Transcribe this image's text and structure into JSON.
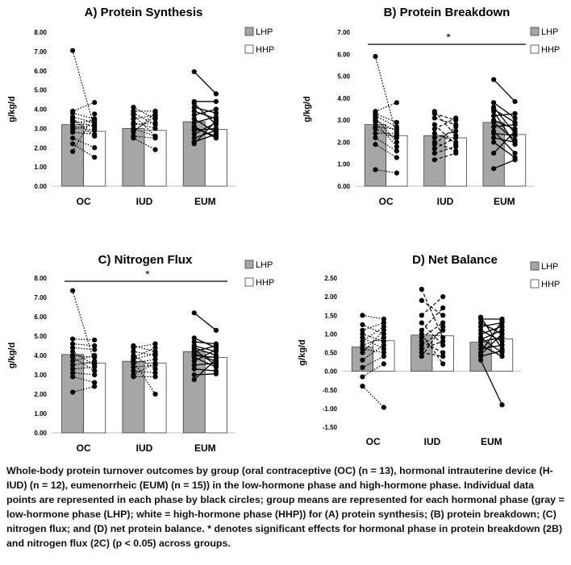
{
  "colors": {
    "lhp": "#a6a6a6",
    "hhp": "#ffffff",
    "dot": "#000000",
    "axis": "#bfbfbf",
    "bar_edge": "#404040"
  },
  "chart_data": [
    {
      "id": "A",
      "type": "bar",
      "title": "A) Protein Synthesis",
      "ylabel": "g/kg/d",
      "ylim": [
        0,
        8
      ],
      "yticks": [
        "0.00",
        "1.00",
        "2.00",
        "3.00",
        "4.00",
        "5.00",
        "6.00",
        "7.00",
        "8.00"
      ],
      "tick_values": [
        0,
        1,
        2,
        3,
        4,
        5,
        6,
        7,
        8
      ],
      "categories": [
        "OC",
        "IUD",
        "EUM"
      ],
      "legend": [
        "LHP",
        "HHP"
      ],
      "significance": null,
      "series": [
        {
          "name": "LHP",
          "values": [
            3.2,
            3.0,
            3.35
          ]
        },
        {
          "name": "HHP",
          "values": [
            2.85,
            2.9,
            2.95
          ]
        }
      ],
      "individual": [
        {
          "lhp": [
            7.05,
            3.9,
            3.8,
            3.6,
            3.5,
            3.4,
            3.3,
            3.1,
            2.95,
            2.8,
            2.5,
            2.2,
            1.8
          ],
          "hhp": [
            3.0,
            4.35,
            3.5,
            3.3,
            2.6,
            3.1,
            3.4,
            2.9,
            3.2,
            2.7,
            2.0,
            1.5,
            3.75
          ],
          "style": [
            1,
            1,
            1,
            1,
            1,
            1,
            1,
            1,
            1,
            1,
            1,
            1,
            1
          ]
        },
        {
          "lhp": [
            4.1,
            3.9,
            3.7,
            3.5,
            3.3,
            3.2,
            3.0,
            2.9,
            2.8,
            2.6,
            2.5,
            3.8
          ],
          "hhp": [
            3.5,
            3.9,
            2.6,
            3.7,
            3.0,
            3.3,
            2.6,
            3.6,
            3.8,
            2.5,
            1.9,
            3.2
          ],
          "style": [
            1,
            1,
            1,
            1,
            1,
            1,
            1,
            1,
            1,
            1,
            1,
            1
          ]
        },
        {
          "lhp": [
            5.95,
            4.4,
            4.3,
            4.1,
            3.9,
            3.7,
            3.5,
            3.3,
            3.1,
            2.9,
            2.7,
            2.5,
            2.3,
            2.2,
            3.0
          ],
          "hhp": [
            4.8,
            4.4,
            3.2,
            3.8,
            3.5,
            4.0,
            2.8,
            3.6,
            2.5,
            3.0,
            3.3,
            2.9,
            2.7,
            3.4,
            2.6
          ],
          "style": [
            0,
            0,
            0,
            0,
            0,
            0,
            0,
            0,
            0,
            0,
            0,
            0,
            0,
            0,
            0
          ]
        }
      ]
    },
    {
      "id": "B",
      "type": "bar",
      "title": "B) Protein Breakdown",
      "ylabel": "g/kg/d",
      "ylim": [
        0,
        7
      ],
      "yticks": [
        "0.00",
        "1.00",
        "2.00",
        "3.00",
        "4.00",
        "5.00",
        "6.00",
        "7.00"
      ],
      "tick_values": [
        0,
        1,
        2,
        3,
        4,
        5,
        6,
        7
      ],
      "categories": [
        "OC",
        "IUD",
        "EUM"
      ],
      "legend": [
        "LHP",
        "HHP"
      ],
      "significance": "*",
      "series": [
        {
          "name": "LHP",
          "values": [
            2.8,
            2.3,
            2.9
          ]
        },
        {
          "name": "HHP",
          "values": [
            2.3,
            2.2,
            2.35
          ]
        }
      ],
      "individual": [
        {
          "lhp": [
            5.9,
            3.4,
            3.3,
            3.2,
            3.1,
            3.0,
            2.9,
            2.7,
            2.6,
            2.4,
            2.2,
            1.9,
            0.75
          ],
          "hhp": [
            2.3,
            3.8,
            2.9,
            2.7,
            2.0,
            2.5,
            1.8,
            2.6,
            2.2,
            2.4,
            1.6,
            1.3,
            0.6
          ],
          "style": [
            1,
            1,
            1,
            1,
            1,
            1,
            1,
            1,
            1,
            1,
            1,
            1,
            1
          ]
        },
        {
          "lhp": [
            3.4,
            3.3,
            3.1,
            2.8,
            2.6,
            2.4,
            2.2,
            2.0,
            1.9,
            1.7,
            1.5,
            1.2
          ],
          "hhp": [
            2.3,
            3.0,
            2.8,
            1.9,
            3.1,
            2.0,
            2.5,
            1.6,
            2.7,
            2.2,
            1.8,
            1.5
          ],
          "style": [
            2,
            2,
            2,
            2,
            2,
            2,
            2,
            2,
            2,
            2,
            2,
            2
          ]
        },
        {
          "lhp": [
            4.85,
            3.8,
            3.6,
            3.5,
            3.4,
            3.2,
            3.0,
            2.9,
            2.7,
            2.5,
            2.4,
            2.2,
            2.0,
            1.5,
            0.8
          ],
          "hhp": [
            3.85,
            3.1,
            2.4,
            2.9,
            1.9,
            3.3,
            2.6,
            2.1,
            2.8,
            1.5,
            2.3,
            2.0,
            1.3,
            2.5,
            1.2
          ],
          "style": [
            0,
            0,
            0,
            0,
            0,
            0,
            0,
            0,
            0,
            0,
            0,
            0,
            0,
            0,
            0
          ]
        }
      ]
    },
    {
      "id": "C",
      "type": "bar",
      "title": "C) Nitrogen Flux",
      "ylabel": "g/kg/d",
      "ylim": [
        0,
        8
      ],
      "yticks": [
        "0.00",
        "1.00",
        "2.00",
        "3.00",
        "4.00",
        "5.00",
        "6.00",
        "7.00",
        "8.00"
      ],
      "tick_values": [
        0,
        1,
        2,
        3,
        4,
        5,
        6,
        7,
        8
      ],
      "categories": [
        "OC",
        "IUD",
        "EUM"
      ],
      "legend": [
        "LHP",
        "HHP"
      ],
      "significance": "*",
      "series": [
        {
          "name": "LHP",
          "values": [
            4.05,
            3.7,
            4.2
          ]
        },
        {
          "name": "HHP",
          "values": [
            3.6,
            3.6,
            3.9
          ]
        }
      ],
      "individual": [
        {
          "lhp": [
            7.35,
            4.85,
            4.6,
            4.4,
            4.2,
            4.0,
            3.9,
            3.7,
            3.5,
            3.3,
            3.1,
            2.9,
            2.1
          ],
          "hhp": [
            3.6,
            4.8,
            4.5,
            4.3,
            3.5,
            3.9,
            3.2,
            4.0,
            3.7,
            3.4,
            3.0,
            2.6,
            2.4
          ],
          "style": [
            1,
            1,
            1,
            1,
            1,
            1,
            1,
            1,
            1,
            1,
            1,
            1,
            1
          ]
        },
        {
          "lhp": [
            4.5,
            4.4,
            4.2,
            4.0,
            3.9,
            3.7,
            3.6,
            3.4,
            3.2,
            3.0,
            2.9,
            3.8
          ],
          "hhp": [
            4.2,
            4.6,
            4.0,
            3.3,
            4.4,
            2.0,
            3.8,
            3.5,
            3.1,
            3.6,
            2.9,
            4.1
          ],
          "style": [
            1,
            1,
            1,
            1,
            1,
            1,
            1,
            1,
            1,
            1,
            1,
            1
          ]
        },
        {
          "lhp": [
            6.2,
            4.9,
            4.7,
            4.5,
            4.4,
            4.3,
            4.2,
            4.1,
            4.0,
            3.9,
            3.7,
            3.5,
            3.3,
            3.0,
            2.75
          ],
          "hhp": [
            5.3,
            4.4,
            4.6,
            4.2,
            4.0,
            3.5,
            4.5,
            3.7,
            3.9,
            3.4,
            4.3,
            3.6,
            3.2,
            3.05,
            3.8
          ],
          "style": [
            0,
            0,
            0,
            0,
            0,
            0,
            0,
            0,
            0,
            0,
            0,
            0,
            0,
            0,
            0
          ]
        }
      ]
    },
    {
      "id": "D",
      "type": "bar",
      "title": "D) Net Balance",
      "ylabel": "g/kg/d",
      "ylim": [
        -1.5,
        2.5
      ],
      "yticks": [
        "-1.50",
        "-1.00",
        "-0.50",
        "0.00",
        "0.50",
        "1.00",
        "1.50",
        "2.00",
        "2.50"
      ],
      "tick_values": [
        -1.5,
        -1.0,
        -0.5,
        0,
        0.5,
        1.0,
        1.5,
        2.0,
        2.5
      ],
      "categories": [
        "OC",
        "IUD",
        "EUM"
      ],
      "legend": [
        "LHP",
        "HHP"
      ],
      "significance": null,
      "series": [
        {
          "name": "LHP",
          "values": [
            0.65,
            0.97,
            0.78
          ]
        },
        {
          "name": "HHP",
          "values": [
            0.82,
            0.95,
            0.87
          ]
        }
      ],
      "individual": [
        {
          "lhp": [
            1.5,
            1.25,
            1.1,
            1.0,
            0.9,
            0.8,
            0.7,
            0.6,
            0.5,
            0.3,
            0.1,
            -0.15,
            -0.4
          ],
          "hhp": [
            1.4,
            1.0,
            1.3,
            0.8,
            0.6,
            1.2,
            0.9,
            0.5,
            1.1,
            0.7,
            0.4,
            0.2,
            -0.97
          ],
          "style": [
            1,
            1,
            1,
            1,
            1,
            1,
            1,
            1,
            1,
            1,
            1,
            1,
            1
          ]
        },
        {
          "lhp": [
            2.2,
            1.9,
            1.5,
            1.3,
            1.1,
            1.0,
            0.9,
            0.8,
            0.7,
            0.6,
            0.5,
            0.4
          ],
          "hhp": [
            0.9,
            1.5,
            2.0,
            0.7,
            1.7,
            0.2,
            1.3,
            0.5,
            1.1,
            0.8,
            0.4,
            1.2
          ],
          "style": [
            2,
            2,
            2,
            2,
            2,
            2,
            2,
            2,
            2,
            2,
            2,
            2
          ]
        },
        {
          "lhp": [
            1.45,
            1.4,
            1.3,
            1.2,
            1.1,
            1.0,
            0.9,
            0.85,
            0.8,
            0.7,
            0.6,
            0.5,
            0.45,
            0.4,
            0.3
          ],
          "hhp": [
            0.6,
            1.4,
            1.0,
            1.3,
            0.8,
            1.2,
            0.5,
            1.1,
            0.9,
            0.4,
            0.7,
            1.35,
            1.0,
            0.55,
            -0.9
          ],
          "style": [
            0,
            0,
            0,
            0,
            0,
            0,
            0,
            0,
            0,
            0,
            0,
            0,
            0,
            0,
            0
          ]
        }
      ]
    }
  ],
  "caption": "Whole-body protein turnover outcomes by group (oral contraceptive (OC) (n = 13), hormonal intrauterine device (H-IUD) (n = 12), eumenorrheic (EUM) (n = 15)) in the low-hormone phase and high-hormone phase. Individual data points are represented in each phase by black circles; group means are represented for each hormonal phase (gray = low-hormone phase (LHP); white = high-hormone phase (HHP)) for (A) protein synthesis; (B) protein breakdown; (C) nitrogen flux; and (D) net protein balance. * denotes significant effects for hormonal phase in protein breakdown (2B) and nitrogen flux (2C) (p < 0.05) across groups."
}
